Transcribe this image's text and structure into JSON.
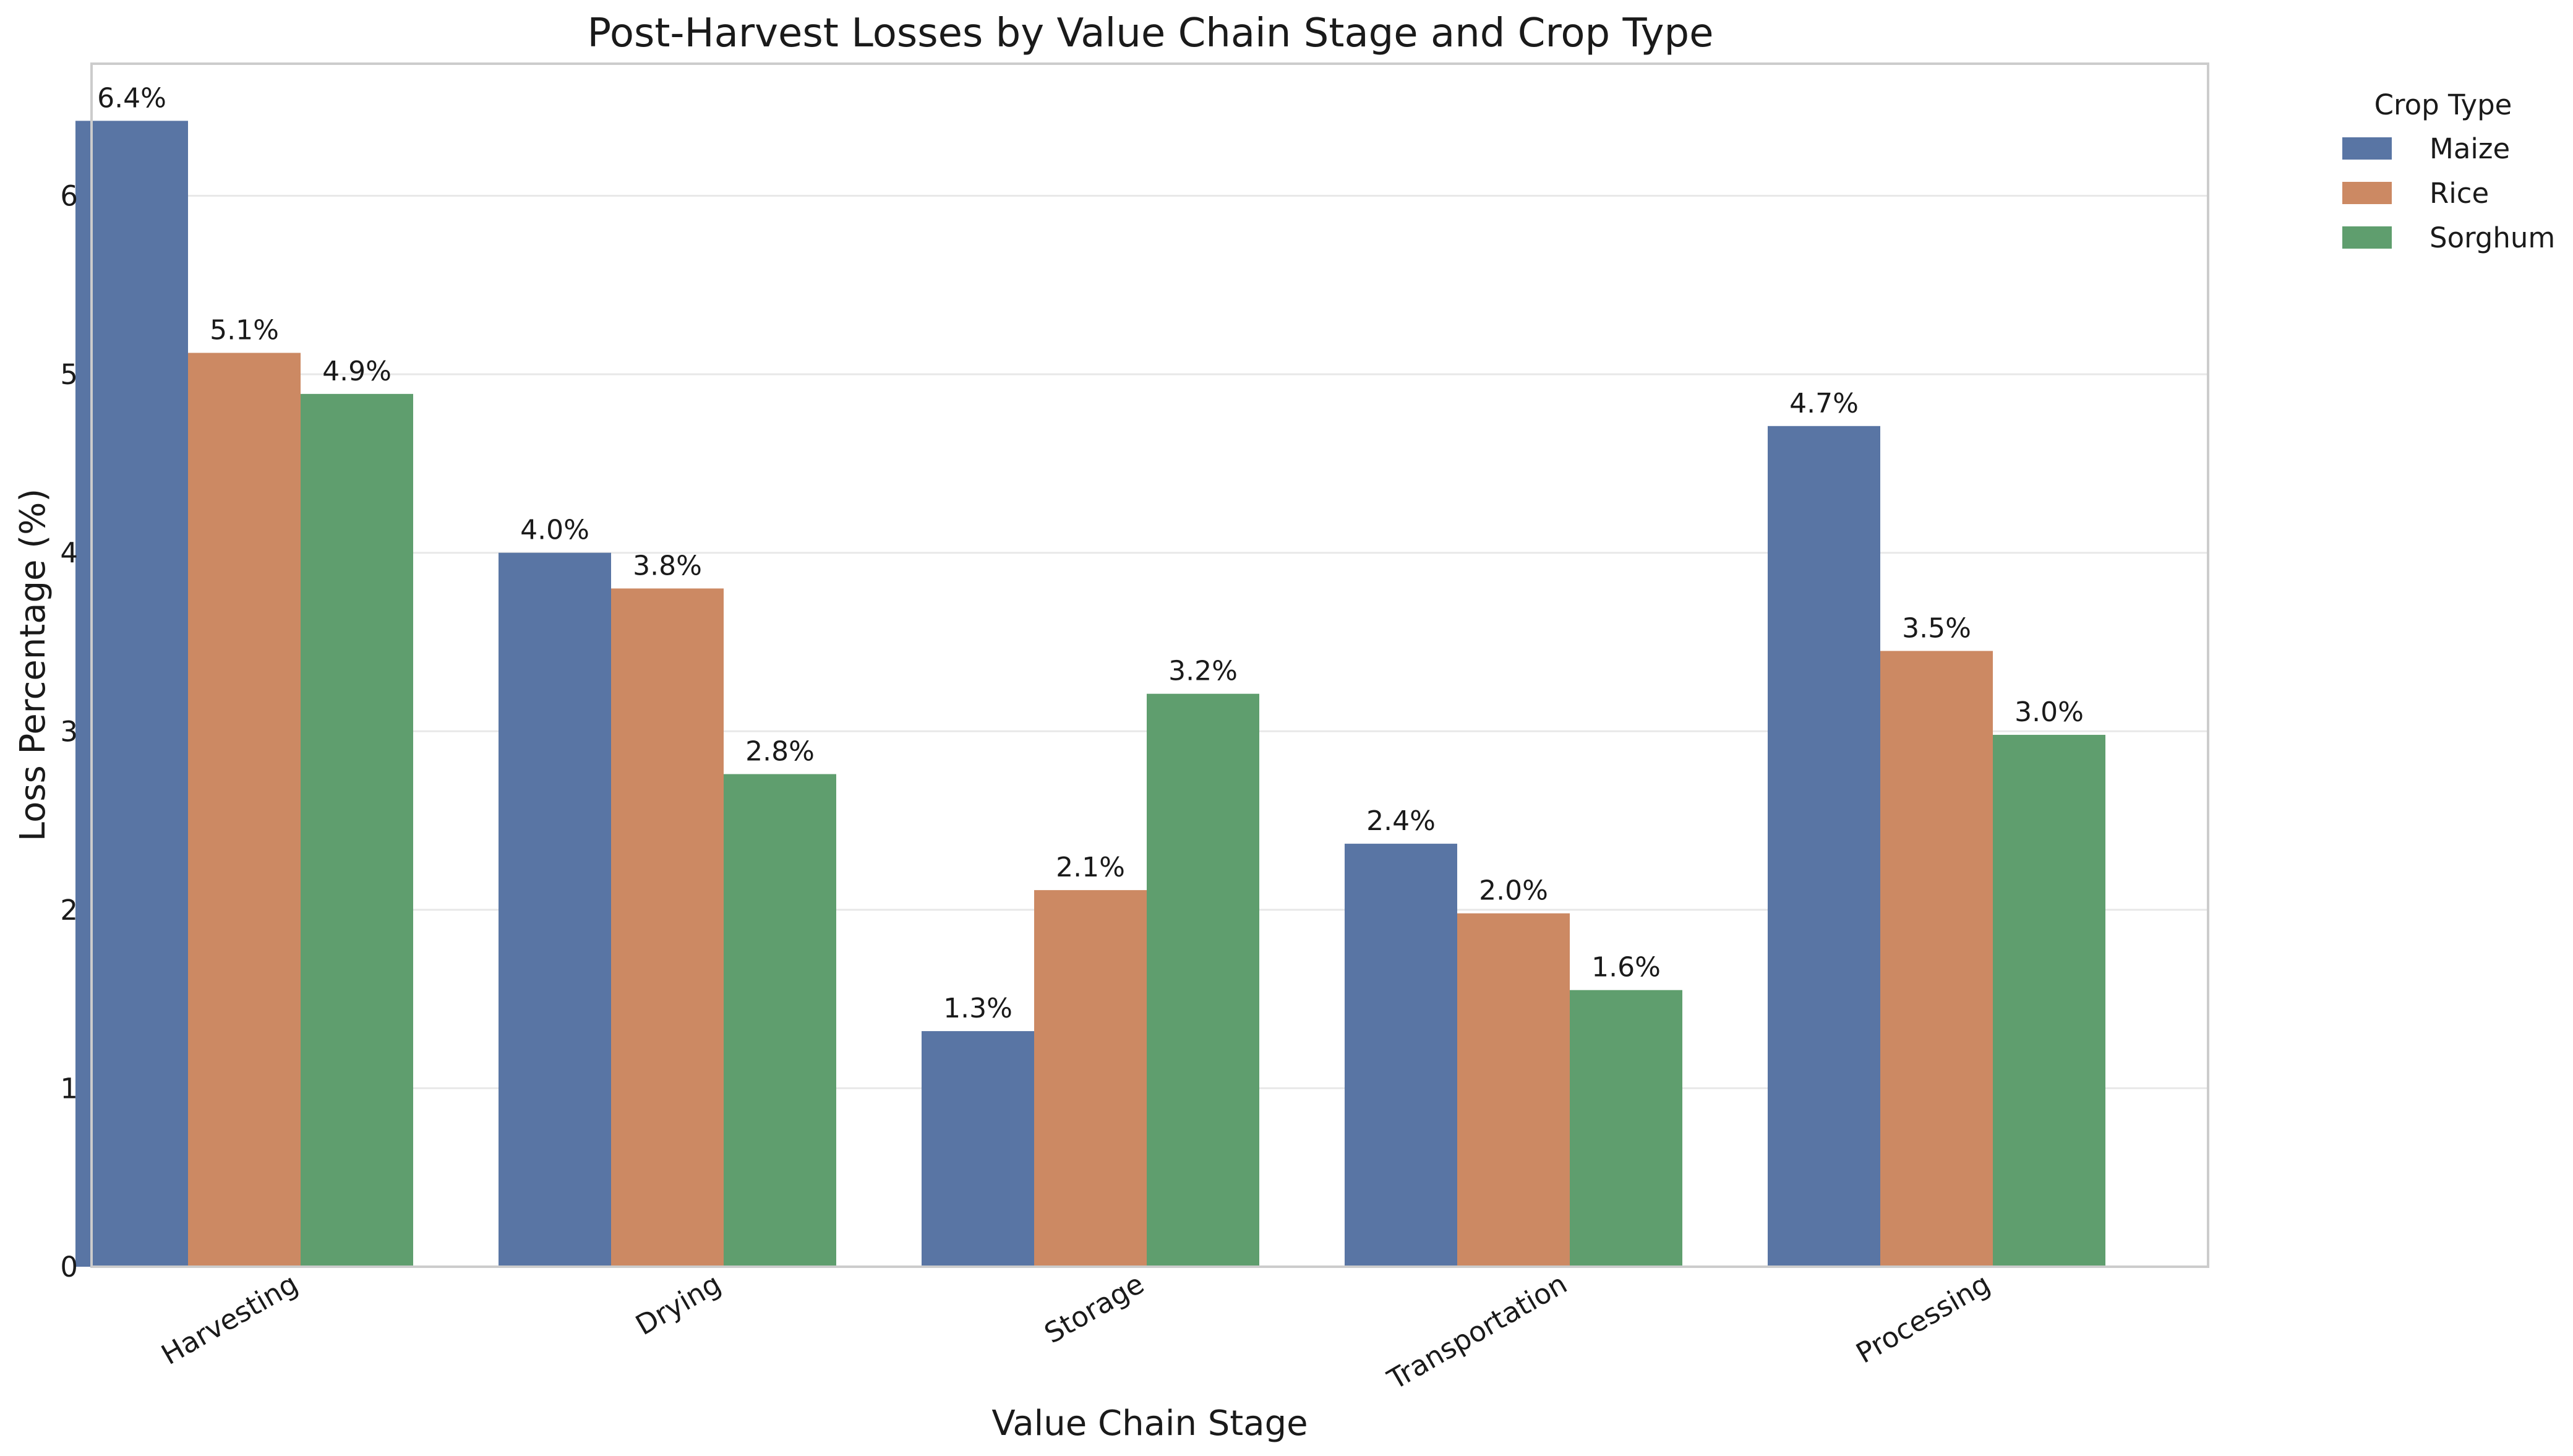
{
  "chart_data": {
    "type": "bar",
    "title": "Post-Harvest Losses by Value Chain Stage and Crop Type",
    "xlabel": "Value Chain Stage",
    "ylabel": "Loss Percentage (%)",
    "categories": [
      "Harvesting",
      "Drying",
      "Storage",
      "Transportation",
      "Processing"
    ],
    "series": [
      {
        "name": "Maize",
        "color": "#5975a4",
        "values": [
          6.42,
          4.0,
          1.32,
          2.37,
          4.71
        ],
        "labels": [
          "6.4%",
          "4.0%",
          "1.3%",
          "2.4%",
          "4.7%"
        ]
      },
      {
        "name": "Rice",
        "color": "#cc8963",
        "values": [
          5.12,
          3.8,
          2.11,
          1.98,
          3.45
        ],
        "labels": [
          "5.1%",
          "3.8%",
          "2.1%",
          "2.0%",
          "3.5%"
        ]
      },
      {
        "name": "Sorghum",
        "color": "#5f9e6e",
        "values": [
          4.89,
          2.76,
          3.21,
          1.55,
          2.98
        ],
        "labels": [
          "4.9%",
          "2.8%",
          "3.2%",
          "1.6%",
          "3.0%"
        ]
      }
    ],
    "ylim": [
      0,
      6.74
    ],
    "yticks": [
      "0",
      "1",
      "2",
      "3",
      "4",
      "5",
      "6"
    ],
    "grid": true,
    "legend": {
      "title": "Crop Type",
      "placement": "outside-top-right"
    }
  }
}
